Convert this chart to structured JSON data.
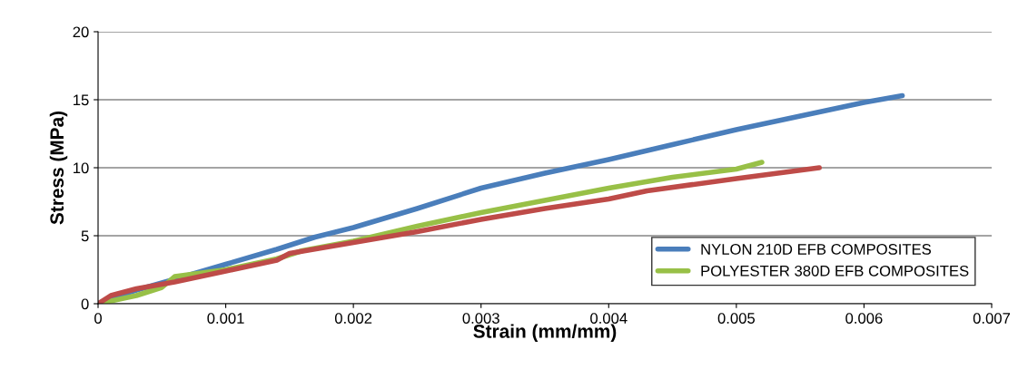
{
  "chart_data": {
    "type": "line",
    "xlabel": "Strain (mm/mm)",
    "ylabel": "Stress (MPa)",
    "xlim": [
      0,
      0.007
    ],
    "xticks": [
      0,
      0.001,
      0.002,
      0.003,
      0.004,
      0.005,
      0.006,
      0.007
    ],
    "ylim": [
      0,
      20
    ],
    "yticks": [
      0,
      5,
      10,
      15,
      20
    ],
    "grid": "y",
    "legend": "bottom right",
    "marker": "none",
    "line_style": "solid",
    "series": [
      {
        "name": "NYLON 210D EFB COMPOSITES",
        "color": "#4a7ebb",
        "x": [
          0,
          0.0001,
          0.0003,
          0.0006,
          0.001,
          0.0014,
          0.0017,
          0.002,
          0.0025,
          0.003,
          0.0035,
          0.004,
          0.0045,
          0.005,
          0.0055,
          0.006,
          0.0063
        ],
        "values": [
          0,
          0.4,
          1,
          1.8,
          2.9,
          4,
          4.9,
          5.6,
          7,
          8.5,
          9.6,
          10.6,
          11.7,
          12.8,
          13.8,
          14.8,
          15.3
        ]
      },
      {
        "name": "POLYESTER 380D EFB COMPOSITES",
        "color": "#98c047",
        "x": [
          0,
          0.0003,
          0.0005,
          0.0006,
          0.001,
          0.0014,
          0.0016,
          0.002,
          0.0025,
          0.003,
          0.0035,
          0.004,
          0.0045,
          0.005,
          0.0052
        ],
        "values": [
          0,
          0.6,
          1.2,
          2,
          2.5,
          3.3,
          3.9,
          4.6,
          5.7,
          6.7,
          7.6,
          8.5,
          9.3,
          9.9,
          10.4
        ]
      },
      {
        "color": "#be4b48",
        "x": [
          0,
          0.0001,
          0.0003,
          0.0006,
          0.001,
          0.0014,
          0.0015,
          0.002,
          0.0025,
          0.003,
          0.0035,
          0.004,
          0.0043,
          0.005,
          0.00565
        ],
        "values": [
          0,
          0.6,
          1.1,
          1.6,
          2.4,
          3.2,
          3.7,
          4.5,
          5.3,
          6.2,
          7,
          7.7,
          8.3,
          9.2,
          10
        ]
      }
    ]
  }
}
